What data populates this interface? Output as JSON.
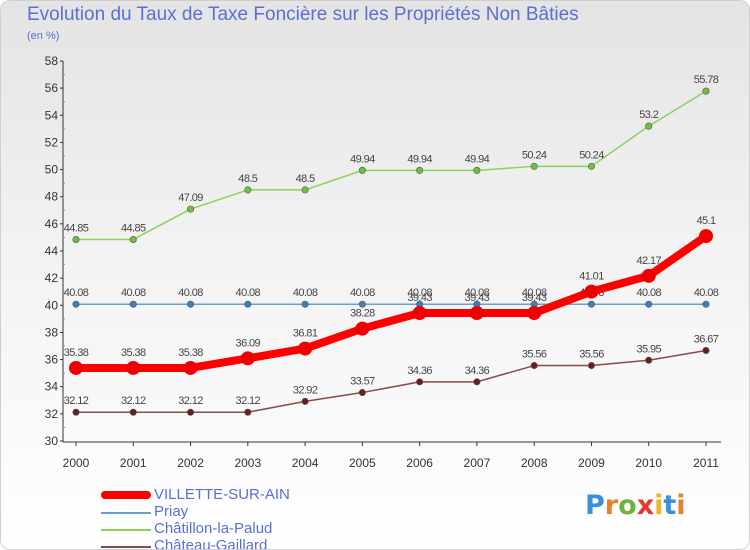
{
  "header": {
    "title": "Evolution du Taux de Taxe Foncière sur les Propriétés Non Bâties",
    "unit": "(en %)"
  },
  "logo": {
    "letters": [
      "P",
      "r",
      "o",
      "x",
      "i",
      "t",
      "i"
    ],
    "colors": [
      "#3b8fd8",
      "#e8822a",
      "#6fb43a",
      "#e23b2e",
      "#f0b323",
      "#3b8fd8",
      "#e8822a"
    ]
  },
  "chart_data": {
    "type": "line",
    "x": [
      "2000",
      "2001",
      "2002",
      "2003",
      "2004",
      "2005",
      "2006",
      "2007",
      "2008",
      "2009",
      "2010",
      "2011"
    ],
    "ylim": [
      30,
      58
    ],
    "yticks": [
      30,
      32,
      34,
      36,
      38,
      40,
      42,
      44,
      46,
      48,
      50,
      52,
      54,
      56,
      58
    ],
    "grid": false,
    "legend_position": "bottom-left",
    "series": [
      {
        "name": "Châtillon-la-Palud",
        "color": "#8fd05a",
        "marker": "#6cc23a",
        "values": [
          44.85,
          44.85,
          47.09,
          48.5,
          48.5,
          49.94,
          49.94,
          49.94,
          50.24,
          50.24,
          53.2,
          55.78
        ],
        "labels": [
          "44.85",
          "44.85",
          "47.09",
          "48.5",
          "48.5",
          "49.94",
          "49.94",
          "49.94",
          "50.24",
          "50.24",
          "53.2",
          "55.78"
        ]
      },
      {
        "name": "Priay",
        "color": "#6a9fce",
        "marker": "#3c7fc0",
        "values": [
          40.08,
          40.08,
          40.08,
          40.08,
          40.08,
          40.08,
          40.08,
          40.08,
          40.08,
          40.08,
          40.08,
          40.08
        ],
        "labels": [
          "40.08",
          "40.08",
          "40.08",
          "40.08",
          "40.08",
          "40.08",
          "40.08",
          "40.08",
          "40.08",
          "40.08",
          "40.08",
          "40.08"
        ]
      },
      {
        "name": "Château-Gaillard",
        "color": "#8a4a4a",
        "marker": "#6a1e1e",
        "values": [
          32.12,
          32.12,
          32.12,
          32.12,
          32.92,
          33.57,
          34.36,
          34.36,
          35.56,
          35.56,
          35.95,
          36.67
        ],
        "labels": [
          "32.12",
          "32.12",
          "32.12",
          "32.12",
          "32.92",
          "33.57",
          "34.36",
          "34.36",
          "35.56",
          "35.56",
          "35.95",
          "36.67"
        ]
      },
      {
        "name": "VILLETTE-SUR-AIN",
        "color": "#ff0000",
        "marker": "#ee0000",
        "values": [
          35.38,
          35.38,
          35.38,
          36.09,
          36.81,
          38.28,
          39.43,
          39.43,
          39.43,
          41.01,
          42.17,
          45.1
        ],
        "labels": [
          "35.38",
          "35.38",
          "35.38",
          "36.09",
          "36.81",
          "38.28",
          "39.43",
          "39.43",
          "39.43",
          "41.01",
          "42.17",
          "45.1"
        ]
      }
    ]
  },
  "legend": [
    {
      "label": "VILLETTE-SUR-AIN",
      "color": "#ff0000",
      "thick": true
    },
    {
      "label": "Priay",
      "color": "#6a9fce",
      "thick": false
    },
    {
      "label": "Châtillon-la-Palud",
      "color": "#8fd05a",
      "thick": false
    },
    {
      "label": "Château-Gaillard",
      "color": "#8a4a4a",
      "thick": false
    }
  ]
}
